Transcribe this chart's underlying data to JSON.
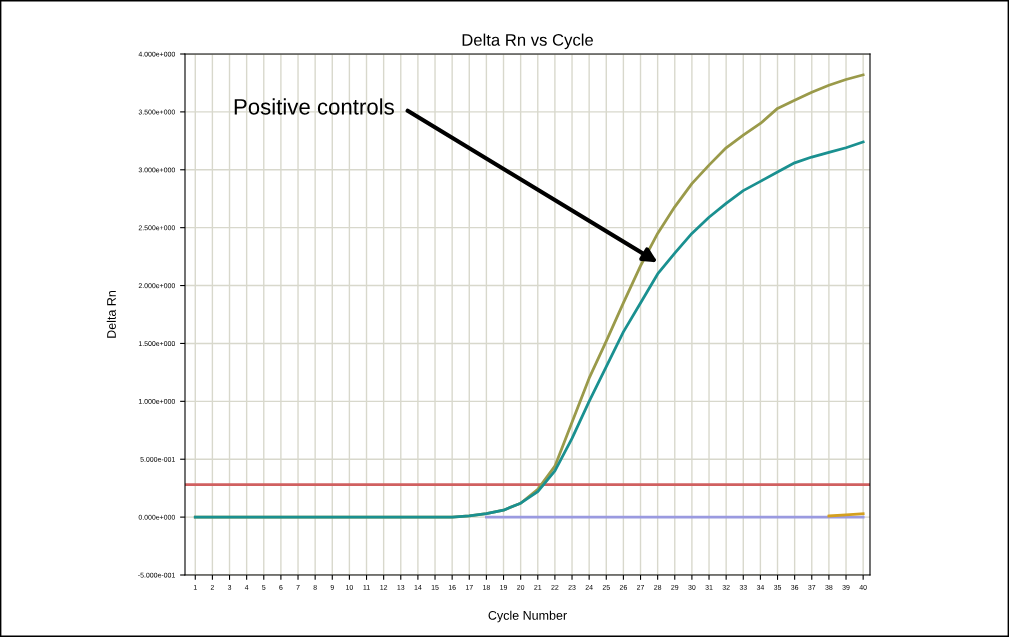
{
  "chart_data": {
    "type": "line",
    "title": "Delta Rn vs Cycle",
    "xlabel": "Cycle Number",
    "ylabel": "Delta Rn",
    "x": [
      1,
      2,
      3,
      4,
      5,
      6,
      7,
      8,
      9,
      10,
      11,
      12,
      13,
      14,
      15,
      16,
      17,
      18,
      19,
      20,
      21,
      22,
      23,
      24,
      25,
      26,
      27,
      28,
      29,
      30,
      31,
      32,
      33,
      34,
      35,
      36,
      37,
      38,
      39,
      40
    ],
    "series": [
      {
        "color": "#9a9a4a",
        "values": [
          0,
          0,
          0,
          0,
          0,
          0,
          0,
          0,
          0,
          0,
          0,
          0,
          0,
          0,
          0,
          0,
          0.01,
          0.03,
          0.06,
          0.12,
          0.24,
          0.44,
          0.82,
          1.2,
          1.52,
          1.85,
          2.17,
          2.45,
          2.68,
          2.88,
          3.04,
          3.19,
          3.3,
          3.4,
          3.53,
          3.6,
          3.67,
          3.73,
          3.78,
          3.82
        ]
      },
      {
        "color": "#9a9ae0",
        "values": [
          null,
          null,
          null,
          null,
          null,
          null,
          null,
          null,
          null,
          null,
          null,
          null,
          null,
          null,
          null,
          null,
          null,
          0,
          0,
          0,
          0,
          0,
          0,
          0,
          0,
          0,
          0,
          0,
          0,
          0,
          0,
          0,
          0,
          0,
          0,
          0,
          0,
          0,
          0,
          0
        ]
      },
      {
        "color": "#d4a020",
        "values": [
          null,
          null,
          null,
          null,
          null,
          null,
          null,
          null,
          null,
          null,
          null,
          null,
          null,
          null,
          null,
          null,
          null,
          null,
          null,
          null,
          null,
          null,
          null,
          null,
          null,
          null,
          null,
          null,
          null,
          null,
          null,
          null,
          null,
          null,
          null,
          null,
          null,
          0.01,
          0.02,
          0.03
        ]
      },
      {
        "color": "#1a9090",
        "values": [
          0,
          0,
          0,
          0,
          0,
          0,
          0,
          0,
          0,
          0,
          0,
          0,
          0,
          0,
          0,
          0,
          0.01,
          0.03,
          0.06,
          0.12,
          0.22,
          0.4,
          0.68,
          1.0,
          1.3,
          1.6,
          1.85,
          2.1,
          2.28,
          2.45,
          2.59,
          2.71,
          2.82,
          2.9,
          2.98,
          3.06,
          3.11,
          3.15,
          3.19,
          3.24
        ]
      }
    ],
    "ref_lines": [
      {
        "axis": "y",
        "value": 0.28,
        "color": "#d06060"
      }
    ],
    "annotations": [
      "Positive controls"
    ],
    "xlim": [
      0.4,
      40.4
    ],
    "xticks": [
      1,
      2,
      3,
      4,
      5,
      6,
      7,
      8,
      9,
      10,
      11,
      12,
      13,
      14,
      15,
      16,
      17,
      18,
      19,
      20,
      21,
      22,
      23,
      24,
      25,
      26,
      27,
      28,
      29,
      30,
      31,
      32,
      33,
      34,
      35,
      36,
      37,
      38,
      39,
      40
    ],
    "ylim": [
      -0.5,
      4.0
    ],
    "yticks": [
      {
        "value": -0.5,
        "label": "-5.000e-001"
      },
      {
        "value": 0,
        "label": "0.000e+000"
      },
      {
        "value": 0.5,
        "label": "5.000e-001"
      },
      {
        "value": 1.0,
        "label": "1.000e+000"
      },
      {
        "value": 1.5,
        "label": "1.500e+000"
      },
      {
        "value": 2.0,
        "label": "2.000e+000"
      },
      {
        "value": 2.5,
        "label": "2.500e+000"
      },
      {
        "value": 3.0,
        "label": "3.000e+000"
      },
      {
        "value": 3.5,
        "label": "3.500e+000"
      },
      {
        "value": 4.0,
        "label": "4.000e+000"
      }
    ],
    "grid": true,
    "marker": "none",
    "line_style": "solid"
  }
}
